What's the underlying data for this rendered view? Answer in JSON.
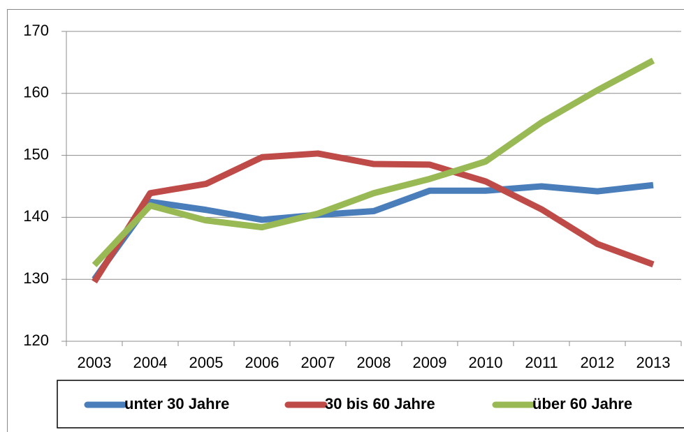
{
  "chart_data": {
    "type": "line",
    "categories": [
      "2003",
      "2004",
      "2005",
      "2006",
      "2007",
      "2008",
      "2009",
      "2010",
      "2011",
      "2012",
      "2013"
    ],
    "series": [
      {
        "name": "unter 30 Jahre",
        "color": "#4a7ebb",
        "values": [
          130.0,
          142.5,
          141.2,
          139.6,
          140.4,
          141.0,
          144.3,
          144.3,
          145.0,
          144.2,
          145.2
        ]
      },
      {
        "name": "30 bis 60 Jahre",
        "color": "#be4b48",
        "values": [
          129.6,
          143.9,
          145.4,
          149.7,
          150.3,
          148.6,
          148.5,
          145.8,
          141.3,
          135.7,
          132.4
        ]
      },
      {
        "name": "über 60 Jahre",
        "color": "#98b954",
        "values": [
          132.3,
          141.9,
          139.5,
          138.4,
          140.6,
          143.9,
          146.2,
          149.0,
          155.3,
          160.5,
          165.3
        ]
      }
    ],
    "ylim": [
      120,
      170
    ],
    "yticks": [
      120,
      130,
      140,
      150,
      160,
      170
    ],
    "grid": true,
    "legend": "bottom"
  }
}
